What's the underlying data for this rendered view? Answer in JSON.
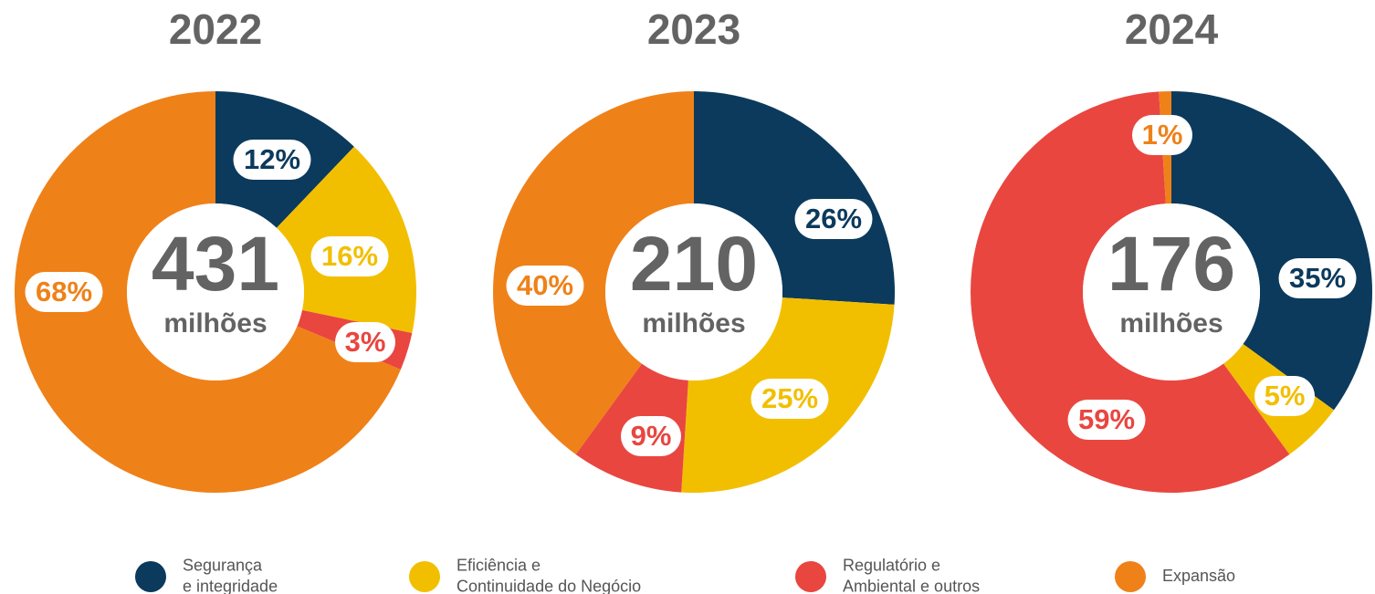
{
  "chart_data": [
    {
      "type": "pie",
      "title": "2022",
      "total": 431,
      "total_unit": "milhões",
      "values": [
        12,
        16,
        3,
        68
      ],
      "value_labels": [
        "12%",
        "16%",
        "3%",
        "68%"
      ]
    },
    {
      "type": "pie",
      "title": "2023",
      "total": 210,
      "total_unit": "milhões",
      "values": [
        26,
        25,
        9,
        40
      ],
      "value_labels": [
        "26%",
        "25%",
        "9%",
        "40%"
      ]
    },
    {
      "type": "pie",
      "title": "2024",
      "total": 176,
      "total_unit": "milhões",
      "values": [
        35,
        5,
        59,
        1
      ],
      "value_labels": [
        "35%",
        "5%",
        "59%",
        "1%"
      ]
    }
  ],
  "legend": {
    "categories": [
      [
        "Segurança",
        "e integridade"
      ],
      [
        "Eficiência e",
        "Continuidade do Negócio"
      ],
      [
        "Regulatório e",
        "Ambiental e outros"
      ],
      [
        "Expansão"
      ]
    ],
    "colors": [
      "#0b3a5c",
      "#f2bf00",
      "#e94640",
      "#ef8119"
    ]
  }
}
